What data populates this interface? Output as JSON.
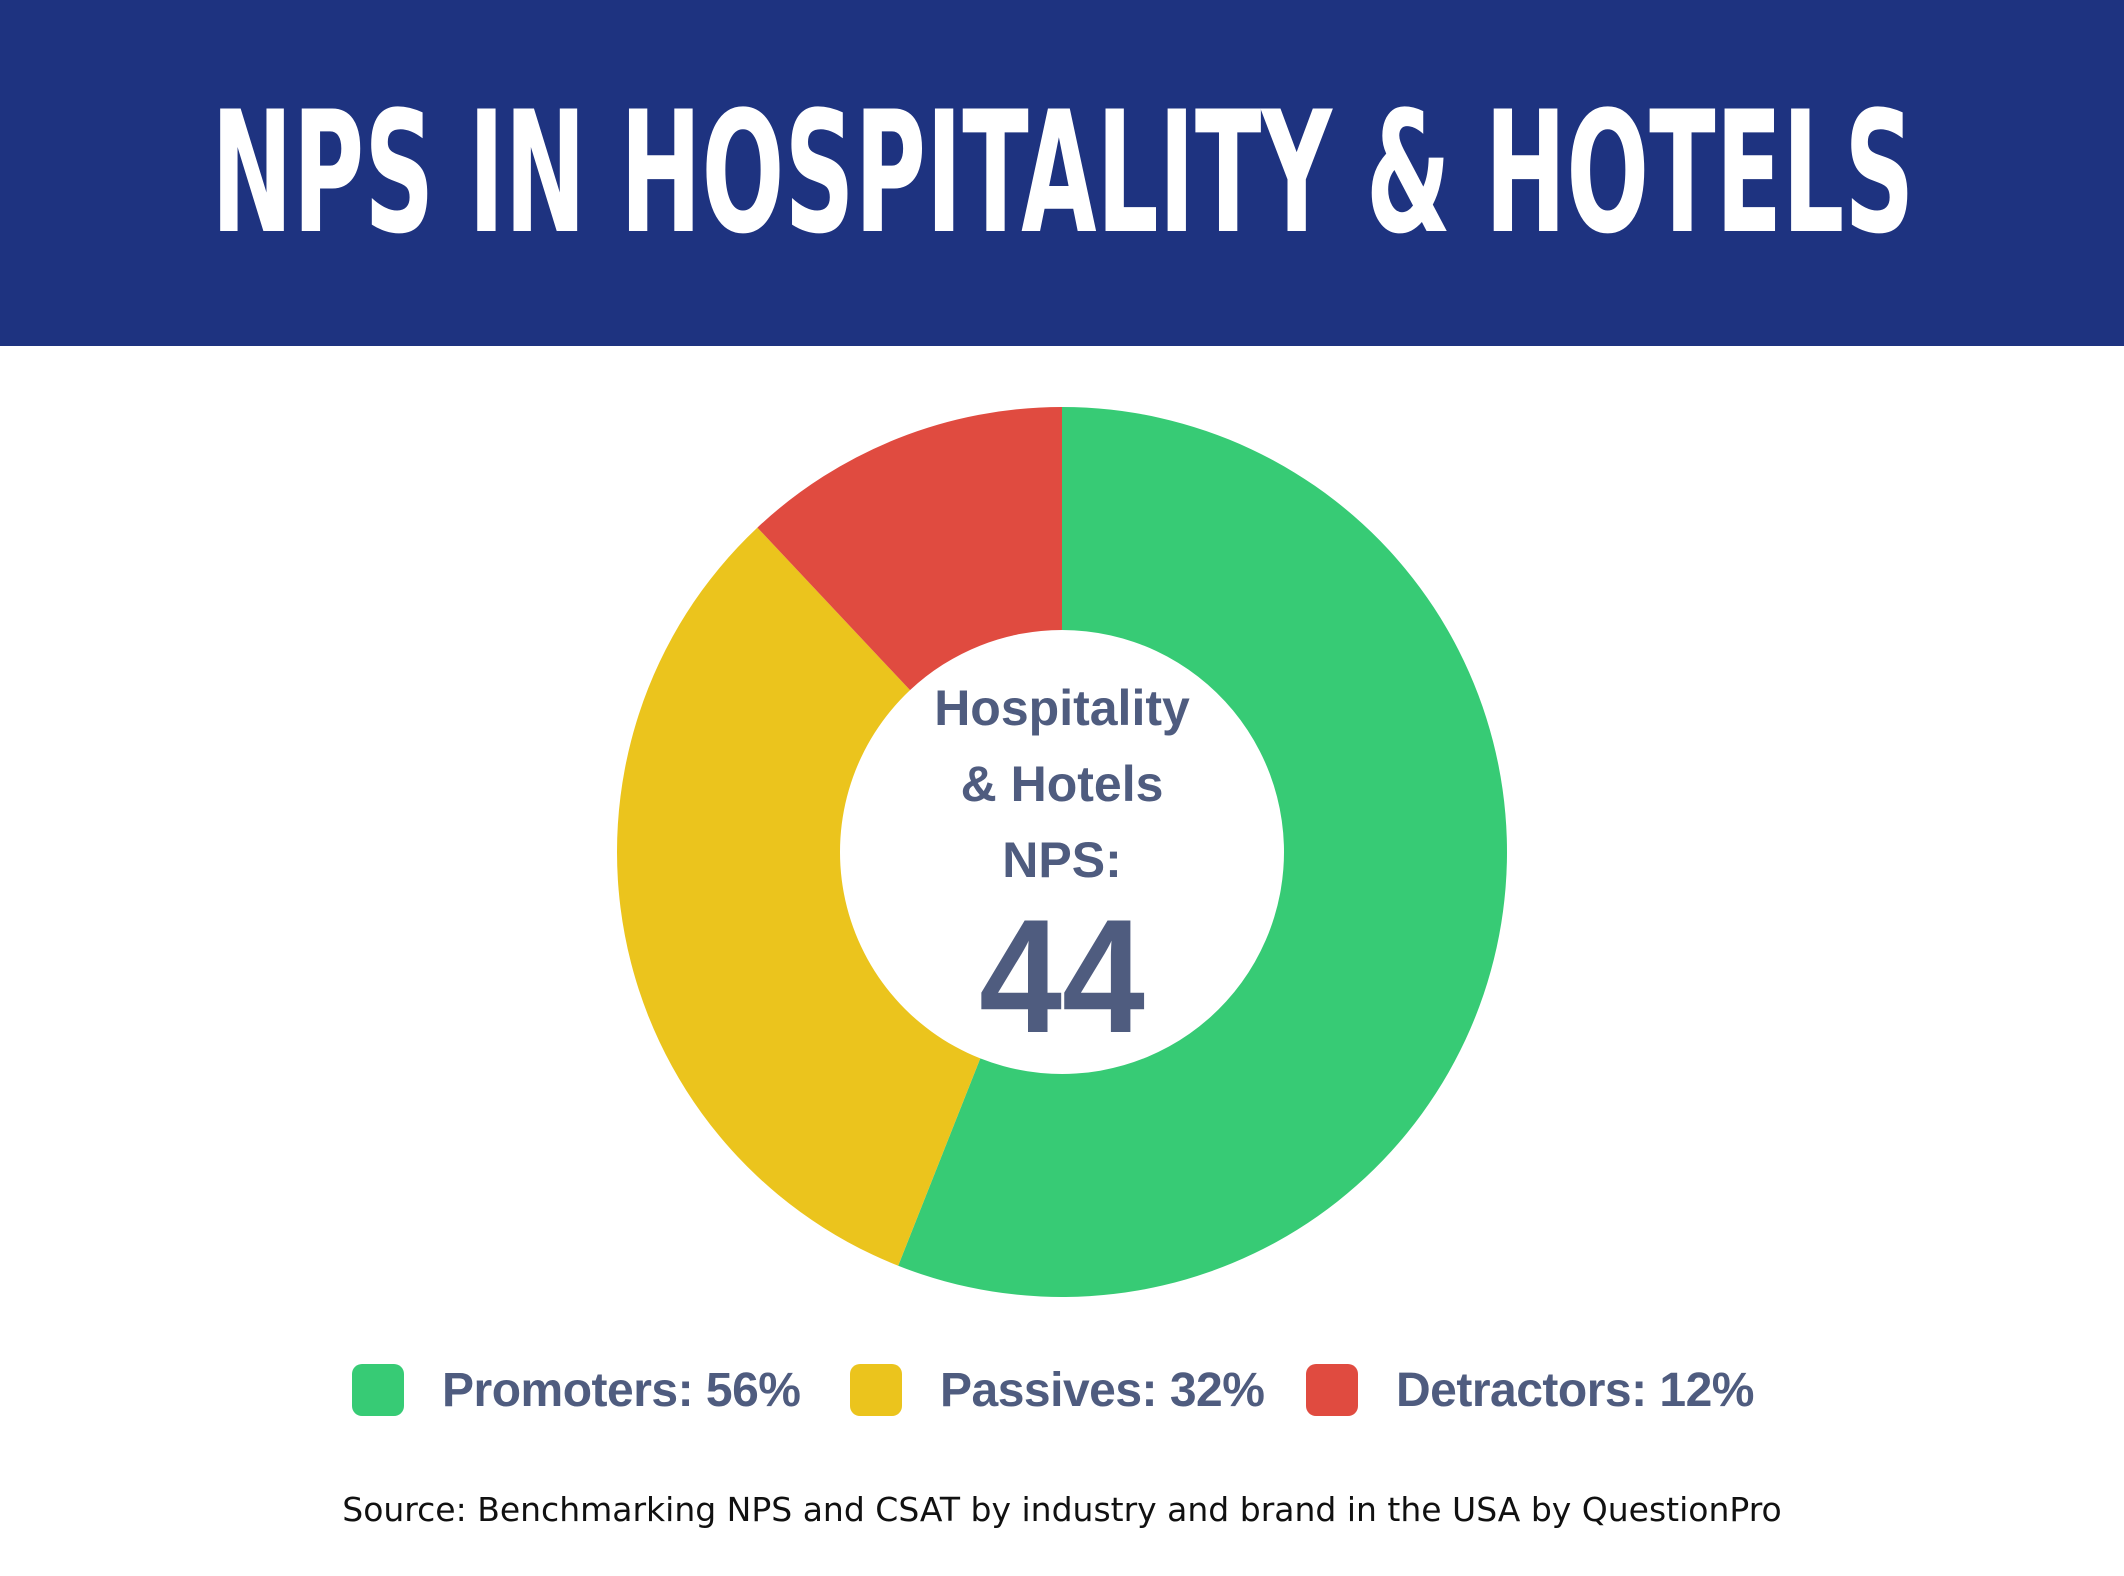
{
  "banner": {
    "title": "NPS IN HOSPITALITY & HOTELS",
    "background": "#1e3380"
  },
  "center": {
    "line1": "Hospitality",
    "line2": "& Hotels",
    "line3": "NPS:",
    "score": "44"
  },
  "legend": {
    "items": [
      {
        "label": "Promoters: 56%",
        "color": "#37cb75"
      },
      {
        "label": "Passives: 32%",
        "color": "#ebc41d"
      },
      {
        "label": "Detractors: 12%",
        "color": "#e04b40"
      }
    ]
  },
  "source": "Source: Benchmarking NPS and CSAT by industry and brand in the USA by QuestionPro",
  "chart_data": {
    "type": "pie",
    "donut": true,
    "categories": [
      "Promoters",
      "Passives",
      "Detractors"
    ],
    "values": [
      56,
      32,
      12
    ],
    "colors": [
      "#37cb75",
      "#ebc41d",
      "#e04b40"
    ],
    "center_value": 44,
    "start": "top, clockwise"
  }
}
